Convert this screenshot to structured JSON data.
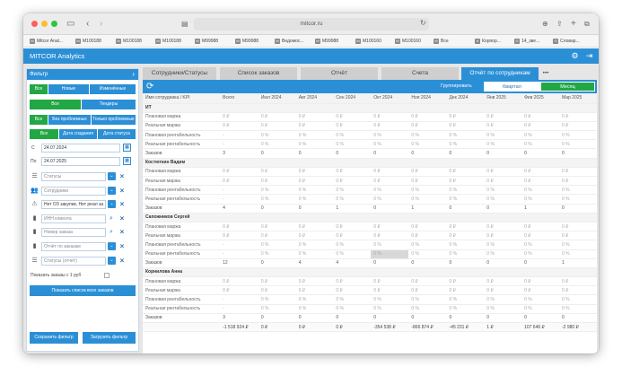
{
  "browser": {
    "url": "mitcor.ru",
    "bookmarks": [
      {
        "icon": "M",
        "label": "Mitcor Anal..."
      },
      {
        "icon": "M",
        "label": "M100188"
      },
      {
        "icon": "M",
        "label": "M100188"
      },
      {
        "icon": "M",
        "label": "M100188"
      },
      {
        "icon": "M",
        "label": "M99988"
      },
      {
        "icon": "M",
        "label": "M99988"
      },
      {
        "icon": "M",
        "label": "Ведомос..."
      },
      {
        "icon": "M",
        "label": "M99988"
      },
      {
        "icon": "M",
        "label": "M100160"
      },
      {
        "icon": "M",
        "label": "M100160"
      },
      {
        "icon": "M",
        "label": "Все"
      },
      {
        "icon": "К",
        "label": "Корпор..."
      },
      {
        "icon": "G",
        "label": "14_зве..."
      },
      {
        "icon": "G",
        "label": "Словар..."
      }
    ]
  },
  "app": {
    "title": "MITCOR Analytics"
  },
  "filter": {
    "title": "Фильтр",
    "row1": [
      "Все",
      "Новые",
      "Изменённые"
    ],
    "row2": [
      "Все",
      "Тендеры"
    ],
    "row3": [
      "Все",
      "Без проблемных",
      "Только проблемные"
    ],
    "row4": [
      "Все",
      "Дата создания",
      "Дата статуса"
    ],
    "date_from_label": "С",
    "date_from": "24.07.2024",
    "date_to_label": "По",
    "date_to": "24.07.2025",
    "status_placeholder": "Статусы",
    "employees_placeholder": "Сотрудники",
    "problem_value": "Нет ОЗ закупки, Нет реал за",
    "inn_placeholder": "ИНН клиента",
    "order_placeholder": "Номер заказа",
    "report_placeholder": "Отчёт по заказам",
    "report_status_placeholder": "Статусы (отчёт)",
    "show_orders_label": "Показать заказы с 1 руб",
    "show_all_button": "Показать список всех заказов",
    "save_button": "Сохранить фильтр",
    "load_button": "Загрузить фильтр"
  },
  "tabs": [
    "Сотрудники/Статусы",
    "Список заказов",
    "Отчёт",
    "Счета",
    "Отчёт по сотрудникам",
    "•••"
  ],
  "toolbar": {
    "group_label": "Группировать",
    "quarter": "Квартал",
    "month": "Месяц"
  },
  "table": {
    "headers": [
      "Имя сотрудника / KPI",
      "Всего",
      "Июл 2024",
      "Авг 2024",
      "Сен 2024",
      "Окт 2024",
      "Ноя 2024",
      "Дек 2024",
      "Янв 2025",
      "Фев 2025",
      "Мар 2025"
    ],
    "rows": [
      {
        "type": "group",
        "cells": [
          "ИТ",
          "",
          "",
          "",
          "",
          "",
          "",
          "",
          "",
          "",
          ""
        ]
      },
      {
        "type": "kpi",
        "cells": [
          "Плановая маржа",
          "0 ₽",
          "0 ₽",
          "0 ₽",
          "0 ₽",
          "0 ₽",
          "0 ₽",
          "0 ₽",
          "0 ₽",
          "0 ₽",
          "0 ₽"
        ]
      },
      {
        "type": "kpi",
        "cells": [
          "Реальная маржа",
          "0 ₽",
          "0 ₽",
          "0 ₽",
          "0 ₽",
          "0 ₽",
          "0 ₽",
          "0 ₽",
          "0 ₽",
          "0 ₽",
          "0 ₽"
        ]
      },
      {
        "type": "kpi",
        "cells": [
          "Плановая рентабельность",
          "-",
          "0 %",
          "0 %",
          "0 %",
          "0 %",
          "0 %",
          "0 %",
          "0 %",
          "0 %",
          "0 %"
        ]
      },
      {
        "type": "kpi",
        "cells": [
          "Реальная рентабельность",
          "-",
          "0 %",
          "0 %",
          "0 %",
          "0 %",
          "0 %",
          "0 %",
          "0 %",
          "0 %",
          "0 %"
        ]
      },
      {
        "type": "count",
        "cells": [
          "Заказов",
          "3",
          "0",
          "0",
          "0",
          "0",
          "0",
          "0",
          "0",
          "0",
          "0"
        ]
      },
      {
        "type": "group",
        "cells": [
          "Костюткин Вадим",
          "",
          "",
          "",
          "",
          "",
          "",
          "",
          "",
          "",
          ""
        ]
      },
      {
        "type": "kpi",
        "cells": [
          "Плановая маржа",
          "0 ₽",
          "0 ₽",
          "0 ₽",
          "0 ₽",
          "0 ₽",
          "0 ₽",
          "0 ₽",
          "0 ₽",
          "0 ₽",
          "0 ₽"
        ]
      },
      {
        "type": "kpi",
        "cells": [
          "Реальная маржа",
          "0 ₽",
          "0 ₽",
          "0 ₽",
          "0 ₽",
          "0 ₽",
          "0 ₽",
          "0 ₽",
          "0 ₽",
          "0 ₽",
          "0 ₽"
        ]
      },
      {
        "type": "kpi",
        "cells": [
          "Плановая рентабельность",
          "-",
          "0 %",
          "0 %",
          "0 %",
          "0 %",
          "0 %",
          "0 %",
          "0 %",
          "0 %",
          "0 %"
        ]
      },
      {
        "type": "kpi",
        "cells": [
          "Реальная рентабельность",
          "-",
          "0 %",
          "0 %",
          "0 %",
          "0 %",
          "0 %",
          "0 %",
          "0 %",
          "0 %",
          "0 %"
        ]
      },
      {
        "type": "count",
        "cells": [
          "Заказов",
          "4",
          "0",
          "0",
          "1",
          "0",
          "1",
          "0",
          "0",
          "1",
          "0"
        ]
      },
      {
        "type": "group",
        "cells": [
          "Сапожников Сергей",
          "",
          "",
          "",
          "",
          "",
          "",
          "",
          "",
          "",
          ""
        ]
      },
      {
        "type": "kpi",
        "cells": [
          "Плановая маржа",
          "0 ₽",
          "0 ₽",
          "0 ₽",
          "0 ₽",
          "0 ₽",
          "0 ₽",
          "0 ₽",
          "0 ₽",
          "0 ₽",
          "0 ₽"
        ]
      },
      {
        "type": "kpi",
        "cells": [
          "Реальная маржа",
          "0 ₽",
          "0 ₽",
          "0 ₽",
          "0 ₽",
          "0 ₽",
          "0 ₽",
          "0 ₽",
          "0 ₽",
          "0 ₽",
          "0 ₽"
        ]
      },
      {
        "type": "kpi",
        "cells": [
          "Плановая рентабельность",
          "-",
          "0 %",
          "0 %",
          "0 %",
          "0 %",
          "0 %",
          "0 %",
          "0 %",
          "0 %",
          "0 %"
        ]
      },
      {
        "type": "kpi",
        "cells": [
          "Реальная рентабельность",
          "-",
          "0 %",
          "0 %",
          "0 %",
          "0 %",
          "0 %",
          "0 %",
          "0 %",
          "0 %",
          "0 %"
        ]
      },
      {
        "type": "count",
        "cells": [
          "Заказов",
          "12",
          "0",
          "4",
          "4",
          "0",
          "0",
          "0",
          "0",
          "0",
          "1"
        ]
      },
      {
        "type": "group",
        "cells": [
          "Корнилова Анна",
          "",
          "",
          "",
          "",
          "",
          "",
          "",
          "",
          "",
          ""
        ]
      },
      {
        "type": "kpi",
        "cells": [
          "Плановая маржа",
          "0 ₽",
          "0 ₽",
          "0 ₽",
          "0 ₽",
          "0 ₽",
          "0 ₽",
          "0 ₽",
          "0 ₽",
          "0 ₽",
          "0 ₽"
        ]
      },
      {
        "type": "kpi",
        "cells": [
          "Реальная маржа",
          "0 ₽",
          "0 ₽",
          "0 ₽",
          "0 ₽",
          "0 ₽",
          "0 ₽",
          "0 ₽",
          "0 ₽",
          "0 ₽",
          "0 ₽"
        ]
      },
      {
        "type": "kpi",
        "cells": [
          "Плановая рентабельность",
          "-",
          "0 %",
          "0 %",
          "0 %",
          "0 %",
          "0 %",
          "0 %",
          "0 %",
          "0 %",
          "0 %"
        ]
      },
      {
        "type": "kpi",
        "cells": [
          "Реальная рентабельность",
          "-",
          "0 %",
          "0 %",
          "0 %",
          "0 %",
          "0 %",
          "0 %",
          "0 %",
          "0 %",
          "0 %"
        ]
      },
      {
        "type": "count",
        "cells": [
          "Заказов",
          "3",
          "0",
          "0",
          "0",
          "0",
          "0",
          "0",
          "0",
          "0",
          "0"
        ]
      },
      {
        "type": "total",
        "cells": [
          "",
          "-1 518 924 ₽",
          "0 ₽",
          "0 ₽",
          "0 ₽",
          "-354 538 ₽",
          "-866 874 ₽",
          "-45 231 ₽",
          "1 ₽",
          "107 646 ₽",
          "-2 980 ₽"
        ]
      }
    ]
  }
}
